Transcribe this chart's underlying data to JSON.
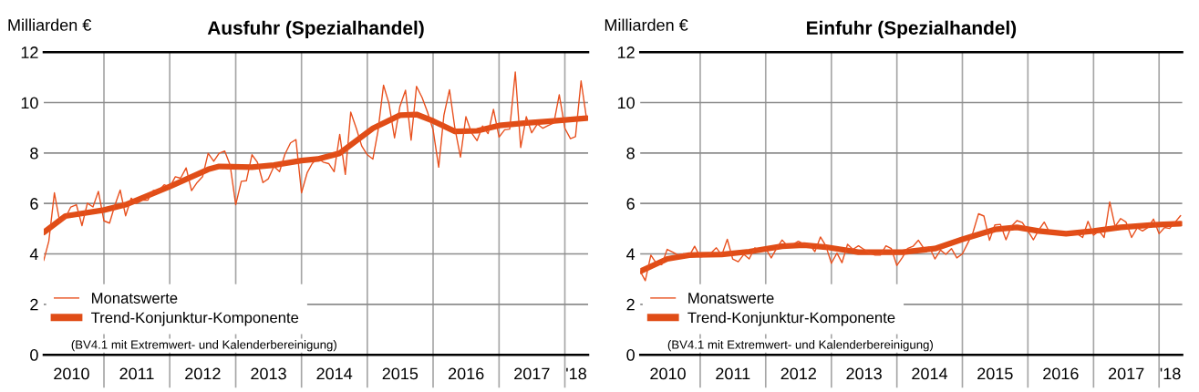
{
  "chart_data": [
    {
      "type": "line",
      "title": "Ausfuhr (Spezialhandel)",
      "ylabel": "Milliarden €",
      "x": [
        "2010-02",
        "2010-03",
        "2010-04",
        "2010-05",
        "2010-06",
        "2010-07",
        "2010-08",
        "2010-09",
        "2010-10",
        "2010-11",
        "2010-12",
        "2011-01",
        "2011-02",
        "2011-03",
        "2011-04",
        "2011-05",
        "2011-06",
        "2011-07",
        "2011-08",
        "2011-09",
        "2011-10",
        "2011-11",
        "2011-12",
        "2012-01",
        "2012-02",
        "2012-03",
        "2012-04",
        "2012-05",
        "2012-06",
        "2012-07",
        "2012-08",
        "2012-09",
        "2012-10",
        "2012-11",
        "2012-12",
        "2013-01",
        "2013-02",
        "2013-03",
        "2013-04",
        "2013-05",
        "2013-06",
        "2013-07",
        "2013-08",
        "2013-09",
        "2013-10",
        "2013-11",
        "2013-12",
        "2014-01",
        "2014-02",
        "2014-03",
        "2014-04",
        "2014-05",
        "2014-06",
        "2014-07",
        "2014-08",
        "2014-09",
        "2014-10",
        "2014-11",
        "2014-12",
        "2015-01",
        "2015-02",
        "2015-03",
        "2015-04",
        "2015-05",
        "2015-06",
        "2015-07",
        "2015-08",
        "2015-09",
        "2015-10",
        "2015-11",
        "2015-12",
        "2016-01",
        "2016-02",
        "2016-03",
        "2016-04",
        "2016-05",
        "2016-06",
        "2016-07",
        "2016-08",
        "2016-09",
        "2016-10",
        "2016-11",
        "2016-12",
        "2017-01",
        "2017-02",
        "2017-03",
        "2017-04",
        "2017-05",
        "2017-06",
        "2017-07",
        "2017-08",
        "2017-09",
        "2017-10",
        "2017-11",
        "2017-12",
        "2018-01",
        "2018-02",
        "2018-03",
        "2018-04",
        "2018-05"
      ],
      "xlim": [
        "2010-02",
        "2018-05-10"
      ],
      "xticks": [
        {
          "value": "2011-01",
          "label": null
        },
        {
          "value": "2012-01",
          "label": null
        },
        {
          "value": "2013-01",
          "label": null
        },
        {
          "value": "2014-01",
          "label": null
        },
        {
          "value": "2015-01",
          "label": null
        },
        {
          "value": "2016-01",
          "label": null
        },
        {
          "value": "2017-01",
          "label": null
        },
        {
          "value": "2018-01",
          "label": null
        },
        {
          "value": "2010-07-05",
          "label": "2010"
        },
        {
          "value": "2011-07-02",
          "label": "2011"
        },
        {
          "value": "2012-07-02",
          "label": "2012"
        },
        {
          "value": "2013-07-02",
          "label": "2013"
        },
        {
          "value": "2014-07-02",
          "label": "2014"
        },
        {
          "value": "2015-07-02",
          "label": "2015"
        },
        {
          "value": "2016-07-02",
          "label": "2016"
        },
        {
          "value": "2017-07-02",
          "label": "2017"
        },
        {
          "value": "2018-03-05",
          "label": "'18"
        }
      ],
      "ylim": [
        0,
        12
      ],
      "yticks": [
        0,
        2,
        4,
        6,
        8,
        10,
        12
      ],
      "grid": true,
      "legend": "bottom left",
      "annotations": [
        "(BV4.1 mit Extremwert- und Kalenderbereinigung)"
      ],
      "series": [
        {
          "name": "Monatswerte",
          "color": "#e8501e",
          "values": [
            3.74,
            4.5,
            6.42,
            5.26,
            5.43,
            5.86,
            5.95,
            5.12,
            6.01,
            5.86,
            6.48,
            5.31,
            5.22,
            5.9,
            6.53,
            5.51,
            6.21,
            6.0,
            6.13,
            6.13,
            6.51,
            6.51,
            6.74,
            6.65,
            7.06,
            7.0,
            7.41,
            6.51,
            6.83,
            7.06,
            7.99,
            7.67,
            7.99,
            8.08,
            7.52,
            5.95,
            6.88,
            6.9,
            7.93,
            7.64,
            6.83,
            6.98,
            7.47,
            7.26,
            7.95,
            8.4,
            8.53,
            6.42,
            7.21,
            7.58,
            7.8,
            7.64,
            7.58,
            7.26,
            8.74,
            7.15,
            9.62,
            8.98,
            8.28,
            7.93,
            7.76,
            8.86,
            10.69,
            9.97,
            8.6,
            9.85,
            10.49,
            8.51,
            10.64,
            10.2,
            9.62,
            8.92,
            7.44,
            9.5,
            10.51,
            8.98,
            7.84,
            9.44,
            8.8,
            8.49,
            9.07,
            8.77,
            9.73,
            8.63,
            8.92,
            8.95,
            11.21,
            8.22,
            9.44,
            8.8,
            9.15,
            8.98,
            9.09,
            9.19,
            10.31,
            8.98,
            8.57,
            8.65,
            10.86,
            9.38
          ]
        },
        {
          "name": "Trend-Konjunktur-Komponente",
          "color": "#e04d17",
          "x": [
            "2010-02",
            "2010-06",
            "2011-01",
            "2011-05",
            "2012-01",
            "2012-08",
            "2012-10",
            "2013-04",
            "2013-08",
            "2014-01",
            "2014-04",
            "2014-08",
            "2015-02",
            "2015-07",
            "2015-10",
            "2016-01",
            "2016-05",
            "2016-09",
            "2017-01",
            "2017-06",
            "2017-11",
            "2018-05"
          ],
          "values": [
            4.85,
            5.5,
            5.74,
            5.95,
            6.67,
            7.35,
            7.47,
            7.44,
            7.52,
            7.7,
            7.76,
            7.99,
            8.98,
            9.5,
            9.53,
            9.27,
            8.86,
            8.88,
            9.09,
            9.19,
            9.27,
            9.38
          ]
        }
      ]
    },
    {
      "type": "line",
      "title": "Einfuhr (Spezialhandel)",
      "ylabel": "Milliarden €",
      "x": [
        "2010-02",
        "2010-03",
        "2010-04",
        "2010-05",
        "2010-06",
        "2010-07",
        "2010-08",
        "2010-09",
        "2010-10",
        "2010-11",
        "2010-12",
        "2011-01",
        "2011-02",
        "2011-03",
        "2011-04",
        "2011-05",
        "2011-06",
        "2011-07",
        "2011-08",
        "2011-09",
        "2011-10",
        "2011-11",
        "2011-12",
        "2012-01",
        "2012-02",
        "2012-03",
        "2012-04",
        "2012-05",
        "2012-06",
        "2012-07",
        "2012-08",
        "2012-09",
        "2012-10",
        "2012-11",
        "2012-12",
        "2013-01",
        "2013-02",
        "2013-03",
        "2013-04",
        "2013-05",
        "2013-06",
        "2013-07",
        "2013-08",
        "2013-09",
        "2013-10",
        "2013-11",
        "2013-12",
        "2014-01",
        "2014-02",
        "2014-03",
        "2014-04",
        "2014-05",
        "2014-06",
        "2014-07",
        "2014-08",
        "2014-09",
        "2014-10",
        "2014-11",
        "2014-12",
        "2015-01",
        "2015-02",
        "2015-03",
        "2015-04",
        "2015-05",
        "2015-06",
        "2015-07",
        "2015-08",
        "2015-09",
        "2015-10",
        "2015-11",
        "2015-12",
        "2016-01",
        "2016-02",
        "2016-03",
        "2016-04",
        "2016-05",
        "2016-06",
        "2016-07",
        "2016-08",
        "2016-09",
        "2016-10",
        "2016-11",
        "2016-12",
        "2017-01",
        "2017-02",
        "2017-03",
        "2017-04",
        "2017-05",
        "2017-06",
        "2017-07",
        "2017-08",
        "2017-09",
        "2017-10",
        "2017-11",
        "2017-12",
        "2018-01",
        "2018-02",
        "2018-03",
        "2018-04",
        "2018-05"
      ],
      "xlim": [
        "2010-02",
        "2018-05-10"
      ],
      "xticks": [
        {
          "value": "2011-01",
          "label": null
        },
        {
          "value": "2012-01",
          "label": null
        },
        {
          "value": "2013-01",
          "label": null
        },
        {
          "value": "2014-01",
          "label": null
        },
        {
          "value": "2015-01",
          "label": null
        },
        {
          "value": "2016-01",
          "label": null
        },
        {
          "value": "2017-01",
          "label": null
        },
        {
          "value": "2018-01",
          "label": null
        },
        {
          "value": "2010-07-05",
          "label": "2010"
        },
        {
          "value": "2011-07-02",
          "label": "2011"
        },
        {
          "value": "2012-07-02",
          "label": "2012"
        },
        {
          "value": "2013-07-02",
          "label": "2013"
        },
        {
          "value": "2014-07-02",
          "label": "2014"
        },
        {
          "value": "2015-07-02",
          "label": "2015"
        },
        {
          "value": "2016-07-02",
          "label": "2016"
        },
        {
          "value": "2017-07-02",
          "label": "2017"
        },
        {
          "value": "2018-03-05",
          "label": "'18"
        }
      ],
      "ylim": [
        0,
        12
      ],
      "yticks": [
        0,
        2,
        4,
        6,
        8,
        10,
        12
      ],
      "grid": true,
      "legend": "bottom left",
      "annotations": [
        "(BV4.1 mit Extremwert- und Kalenderbereinigung)"
      ],
      "series": [
        {
          "name": "Monatswerte",
          "color": "#e8501e",
          "values": [
            3.31,
            2.94,
            3.95,
            3.63,
            3.57,
            4.18,
            4.07,
            3.95,
            4.0,
            3.92,
            4.3,
            3.88,
            3.92,
            4.03,
            4.24,
            3.95,
            4.58,
            3.8,
            3.69,
            3.98,
            3.8,
            4.24,
            4.15,
            4.21,
            3.84,
            4.21,
            4.55,
            4.32,
            4.38,
            4.5,
            4.38,
            4.38,
            4.09,
            4.67,
            4.32,
            3.63,
            4.03,
            3.65,
            4.38,
            4.18,
            4.32,
            4.18,
            4.03,
            3.95,
            3.95,
            4.32,
            4.21,
            3.54,
            3.86,
            4.21,
            4.3,
            4.54,
            4.21,
            4.27,
            3.8,
            4.15,
            3.98,
            4.21,
            3.84,
            4.0,
            4.44,
            4.85,
            5.59,
            5.5,
            4.54,
            5.15,
            5.17,
            4.56,
            5.09,
            5.32,
            5.24,
            4.91,
            4.56,
            4.94,
            5.26,
            4.85,
            4.85,
            4.8,
            4.82,
            4.82,
            4.8,
            4.65,
            5.29,
            4.74,
            4.91,
            4.65,
            6.06,
            5.09,
            5.4,
            5.26,
            4.65,
            5.03,
            4.91,
            5.05,
            5.38,
            4.8,
            5.05,
            5.01,
            5.26,
            5.52
          ]
        },
        {
          "name": "Trend-Konjunktur-Komponente",
          "color": "#e04d17",
          "x": [
            "2010-02",
            "2010-07",
            "2010-11",
            "2011-05",
            "2011-10",
            "2012-04",
            "2012-08",
            "2012-12",
            "2013-06",
            "2013-11",
            "2014-02",
            "2014-08",
            "2015-01",
            "2015-07",
            "2015-11",
            "2016-03",
            "2016-08",
            "2017-01",
            "2017-06",
            "2017-12",
            "2018-05"
          ],
          "values": [
            3.31,
            3.8,
            3.95,
            3.98,
            4.09,
            4.3,
            4.35,
            4.27,
            4.07,
            4.07,
            4.07,
            4.21,
            4.58,
            4.97,
            5.05,
            4.91,
            4.8,
            4.91,
            5.05,
            5.15,
            5.2
          ]
        }
      ]
    }
  ]
}
